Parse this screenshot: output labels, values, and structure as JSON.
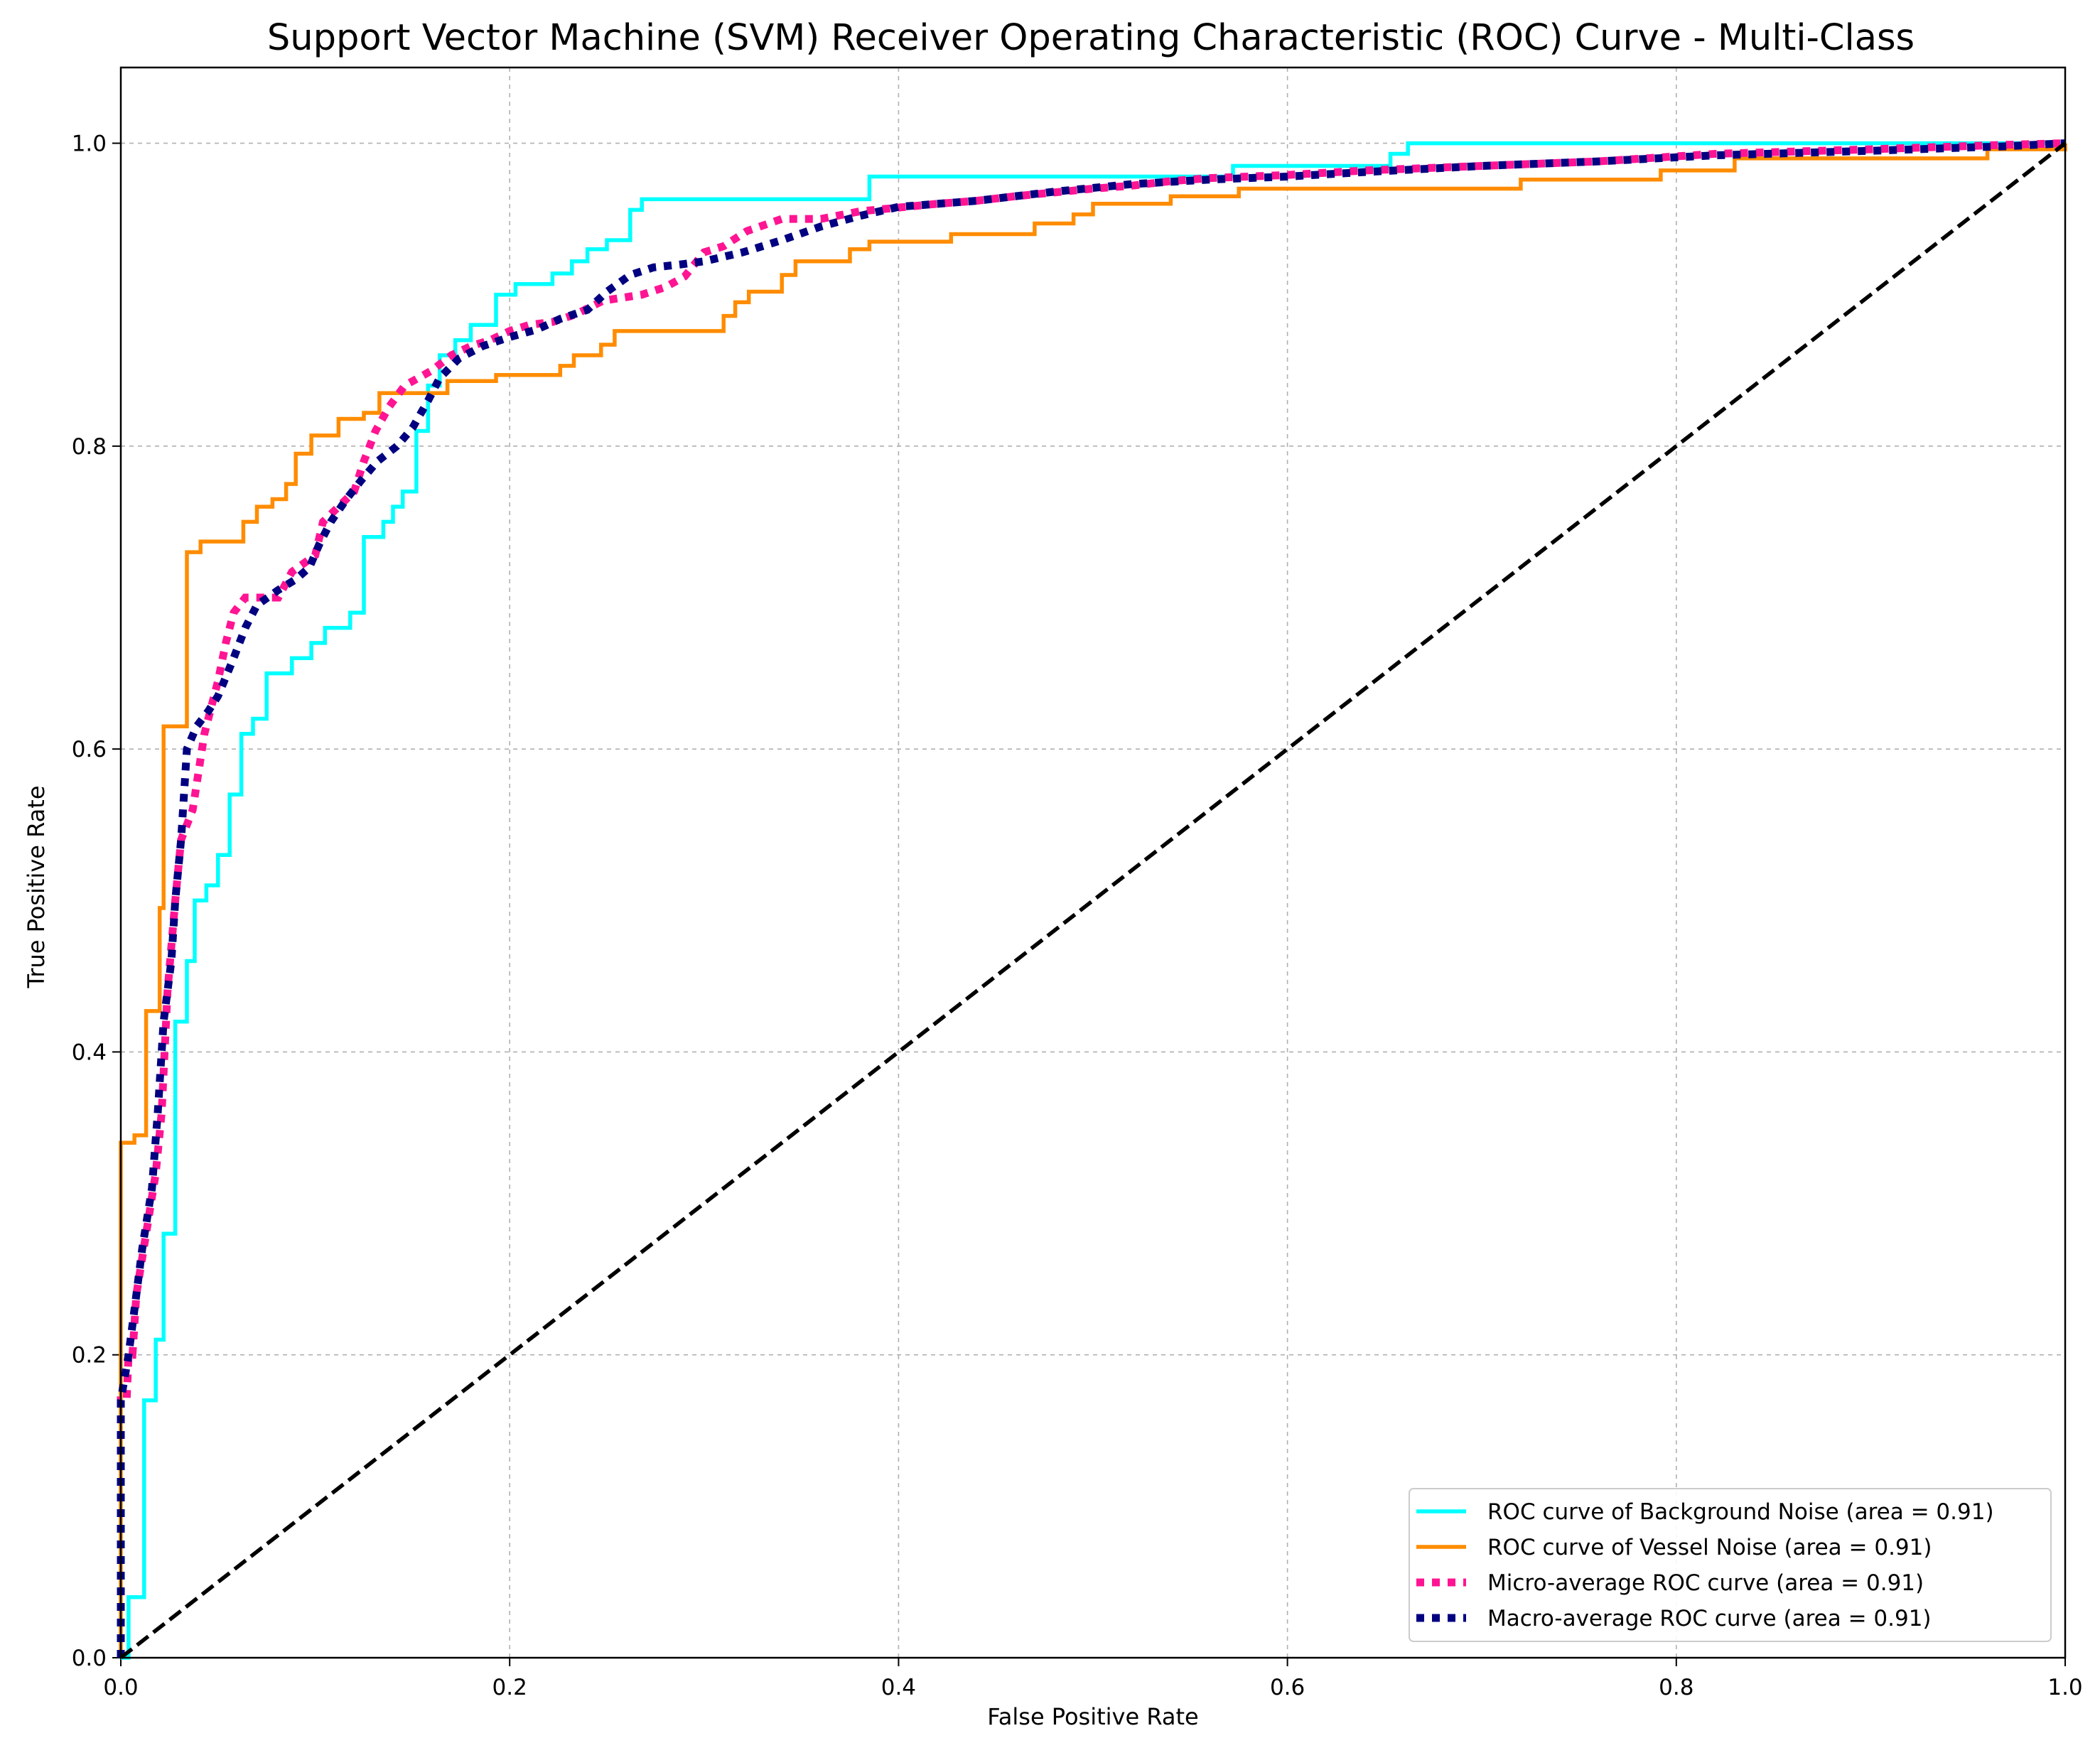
{
  "chart_data": {
    "type": "line",
    "title": "Support Vector Machine (SVM) Receiver Operating Characteristic (ROC) Curve - Multi-Class",
    "xlabel": "False Positive Rate",
    "ylabel": "True Positive Rate",
    "xlim": [
      0.0,
      1.0
    ],
    "ylim": [
      0.0,
      1.05
    ],
    "xticks": [
      0.0,
      0.2,
      0.4,
      0.6,
      0.8,
      1.0
    ],
    "yticks": [
      0.0,
      0.2,
      0.4,
      0.6,
      0.8,
      1.0
    ],
    "xtick_labels": [
      "0.0",
      "0.2",
      "0.4",
      "0.6",
      "0.8",
      "1.0"
    ],
    "ytick_labels": [
      "0.0",
      "0.2",
      "0.4",
      "0.6",
      "0.8",
      "1.0"
    ],
    "grid": true,
    "legend_position": "lower-right",
    "series": [
      {
        "name": "ROC curve of Background Noise (area = 0.91)",
        "color": "#00ffff",
        "style": "solid",
        "points": [
          [
            0.0,
            0.0
          ],
          [
            0.004,
            0.0
          ],
          [
            0.004,
            0.04
          ],
          [
            0.012,
            0.04
          ],
          [
            0.012,
            0.17
          ],
          [
            0.018,
            0.17
          ],
          [
            0.018,
            0.21
          ],
          [
            0.022,
            0.21
          ],
          [
            0.022,
            0.28
          ],
          [
            0.028,
            0.28
          ],
          [
            0.028,
            0.42
          ],
          [
            0.034,
            0.42
          ],
          [
            0.034,
            0.46
          ],
          [
            0.038,
            0.46
          ],
          [
            0.038,
            0.5
          ],
          [
            0.044,
            0.5
          ],
          [
            0.044,
            0.51
          ],
          [
            0.05,
            0.51
          ],
          [
            0.05,
            0.53
          ],
          [
            0.056,
            0.53
          ],
          [
            0.056,
            0.57
          ],
          [
            0.062,
            0.57
          ],
          [
            0.062,
            0.61
          ],
          [
            0.068,
            0.61
          ],
          [
            0.068,
            0.62
          ],
          [
            0.075,
            0.62
          ],
          [
            0.075,
            0.65
          ],
          [
            0.088,
            0.65
          ],
          [
            0.088,
            0.66
          ],
          [
            0.098,
            0.66
          ],
          [
            0.098,
            0.67
          ],
          [
            0.105,
            0.67
          ],
          [
            0.105,
            0.68
          ],
          [
            0.118,
            0.68
          ],
          [
            0.118,
            0.69
          ],
          [
            0.125,
            0.69
          ],
          [
            0.125,
            0.74
          ],
          [
            0.135,
            0.74
          ],
          [
            0.135,
            0.75
          ],
          [
            0.14,
            0.75
          ],
          [
            0.14,
            0.76
          ],
          [
            0.145,
            0.76
          ],
          [
            0.145,
            0.77
          ],
          [
            0.152,
            0.77
          ],
          [
            0.152,
            0.81
          ],
          [
            0.158,
            0.81
          ],
          [
            0.158,
            0.84
          ],
          [
            0.164,
            0.84
          ],
          [
            0.164,
            0.86
          ],
          [
            0.172,
            0.86
          ],
          [
            0.172,
            0.87
          ],
          [
            0.18,
            0.87
          ],
          [
            0.18,
            0.88
          ],
          [
            0.193,
            0.88
          ],
          [
            0.193,
            0.9
          ],
          [
            0.203,
            0.9
          ],
          [
            0.203,
            0.907
          ],
          [
            0.222,
            0.907
          ],
          [
            0.222,
            0.914
          ],
          [
            0.232,
            0.914
          ],
          [
            0.232,
            0.922
          ],
          [
            0.24,
            0.922
          ],
          [
            0.24,
            0.93
          ],
          [
            0.25,
            0.93
          ],
          [
            0.25,
            0.936
          ],
          [
            0.262,
            0.936
          ],
          [
            0.262,
            0.956
          ],
          [
            0.268,
            0.956
          ],
          [
            0.268,
            0.963
          ],
          [
            0.385,
            0.963
          ],
          [
            0.385,
            0.978
          ],
          [
            0.572,
            0.978
          ],
          [
            0.572,
            0.985
          ],
          [
            0.653,
            0.985
          ],
          [
            0.653,
            0.993
          ],
          [
            0.662,
            0.993
          ],
          [
            0.662,
            1.0
          ],
          [
            1.0,
            1.0
          ]
        ]
      },
      {
        "name": "ROC curve of Vessel Noise (area = 0.91)",
        "color": "#ff8c00",
        "style": "solid",
        "points": [
          [
            0.0,
            0.0
          ],
          [
            0.0,
            0.34
          ],
          [
            0.007,
            0.34
          ],
          [
            0.007,
            0.345
          ],
          [
            0.013,
            0.345
          ],
          [
            0.013,
            0.427
          ],
          [
            0.02,
            0.427
          ],
          [
            0.02,
            0.495
          ],
          [
            0.022,
            0.495
          ],
          [
            0.022,
            0.615
          ],
          [
            0.034,
            0.615
          ],
          [
            0.034,
            0.73
          ],
          [
            0.041,
            0.73
          ],
          [
            0.041,
            0.737
          ],
          [
            0.063,
            0.737
          ],
          [
            0.063,
            0.75
          ],
          [
            0.07,
            0.75
          ],
          [
            0.07,
            0.76
          ],
          [
            0.078,
            0.76
          ],
          [
            0.078,
            0.765
          ],
          [
            0.085,
            0.765
          ],
          [
            0.085,
            0.775
          ],
          [
            0.09,
            0.775
          ],
          [
            0.09,
            0.795
          ],
          [
            0.098,
            0.795
          ],
          [
            0.098,
            0.807
          ],
          [
            0.112,
            0.807
          ],
          [
            0.112,
            0.818
          ],
          [
            0.125,
            0.818
          ],
          [
            0.125,
            0.822
          ],
          [
            0.133,
            0.822
          ],
          [
            0.133,
            0.835
          ],
          [
            0.168,
            0.835
          ],
          [
            0.168,
            0.843
          ],
          [
            0.193,
            0.843
          ],
          [
            0.193,
            0.847
          ],
          [
            0.226,
            0.847
          ],
          [
            0.226,
            0.853
          ],
          [
            0.233,
            0.853
          ],
          [
            0.233,
            0.86
          ],
          [
            0.247,
            0.86
          ],
          [
            0.247,
            0.867
          ],
          [
            0.254,
            0.867
          ],
          [
            0.254,
            0.876
          ],
          [
            0.31,
            0.876
          ],
          [
            0.31,
            0.886
          ],
          [
            0.316,
            0.886
          ],
          [
            0.316,
            0.895
          ],
          [
            0.323,
            0.895
          ],
          [
            0.323,
            0.902
          ],
          [
            0.34,
            0.902
          ],
          [
            0.34,
            0.913
          ],
          [
            0.347,
            0.913
          ],
          [
            0.347,
            0.922
          ],
          [
            0.375,
            0.922
          ],
          [
            0.375,
            0.93
          ],
          [
            0.385,
            0.93
          ],
          [
            0.385,
            0.935
          ],
          [
            0.427,
            0.935
          ],
          [
            0.427,
            0.94
          ],
          [
            0.47,
            0.94
          ],
          [
            0.47,
            0.947
          ],
          [
            0.49,
            0.947
          ],
          [
            0.49,
            0.953
          ],
          [
            0.5,
            0.953
          ],
          [
            0.5,
            0.96
          ],
          [
            0.54,
            0.96
          ],
          [
            0.54,
            0.965
          ],
          [
            0.575,
            0.965
          ],
          [
            0.575,
            0.97
          ],
          [
            0.72,
            0.97
          ],
          [
            0.72,
            0.976
          ],
          [
            0.792,
            0.976
          ],
          [
            0.792,
            0.982
          ],
          [
            0.83,
            0.982
          ],
          [
            0.83,
            0.99
          ],
          [
            0.96,
            0.99
          ],
          [
            0.96,
            0.996
          ],
          [
            1.0,
            0.996
          ],
          [
            1.0,
            1.0
          ]
        ]
      },
      {
        "name": "Micro-average ROC curve (area = 0.91)",
        "color": "#ff1493",
        "style": "dotted",
        "points": [
          [
            0.0,
            0.0
          ],
          [
            0.0,
            0.17
          ],
          [
            0.003,
            0.17
          ],
          [
            0.004,
            0.2
          ],
          [
            0.006,
            0.2
          ],
          [
            0.008,
            0.24
          ],
          [
            0.013,
            0.28
          ],
          [
            0.018,
            0.32
          ],
          [
            0.021,
            0.36
          ],
          [
            0.024,
            0.44
          ],
          [
            0.028,
            0.5
          ],
          [
            0.031,
            0.54
          ],
          [
            0.037,
            0.56
          ],
          [
            0.043,
            0.61
          ],
          [
            0.05,
            0.645
          ],
          [
            0.054,
            0.67
          ],
          [
            0.058,
            0.69
          ],
          [
            0.064,
            0.7
          ],
          [
            0.081,
            0.7
          ],
          [
            0.088,
            0.717
          ],
          [
            0.1,
            0.728
          ],
          [
            0.104,
            0.75
          ],
          [
            0.112,
            0.76
          ],
          [
            0.12,
            0.77
          ],
          [
            0.125,
            0.79
          ],
          [
            0.131,
            0.81
          ],
          [
            0.138,
            0.826
          ],
          [
            0.146,
            0.84
          ],
          [
            0.16,
            0.85
          ],
          [
            0.17,
            0.86
          ],
          [
            0.18,
            0.866
          ],
          [
            0.19,
            0.87
          ],
          [
            0.2,
            0.876
          ],
          [
            0.21,
            0.88
          ],
          [
            0.222,
            0.882
          ],
          [
            0.234,
            0.887
          ],
          [
            0.248,
            0.896
          ],
          [
            0.268,
            0.9
          ],
          [
            0.28,
            0.905
          ],
          [
            0.29,
            0.912
          ],
          [
            0.3,
            0.928
          ],
          [
            0.31,
            0.932
          ],
          [
            0.322,
            0.942
          ],
          [
            0.34,
            0.95
          ],
          [
            0.36,
            0.95
          ],
          [
            0.38,
            0.955
          ],
          [
            0.42,
            0.96
          ],
          [
            0.44,
            0.962
          ],
          [
            0.46,
            0.965
          ],
          [
            0.5,
            0.97
          ],
          [
            0.52,
            0.972
          ],
          [
            0.54,
            0.975
          ],
          [
            0.56,
            0.977
          ],
          [
            0.6,
            0.979
          ],
          [
            0.64,
            0.982
          ],
          [
            0.7,
            0.985
          ],
          [
            0.76,
            0.988
          ],
          [
            0.82,
            0.993
          ],
          [
            0.9,
            0.996
          ],
          [
            0.97,
            0.999
          ],
          [
            1.0,
            1.0
          ]
        ]
      },
      {
        "name": "Macro-average ROC curve (area = 0.91)",
        "color": "#000080",
        "style": "dotted",
        "points": [
          [
            0.0,
            0.0
          ],
          [
            0.0,
            0.17
          ],
          [
            0.004,
            0.2
          ],
          [
            0.007,
            0.23
          ],
          [
            0.011,
            0.27
          ],
          [
            0.016,
            0.31
          ],
          [
            0.019,
            0.36
          ],
          [
            0.022,
            0.42
          ],
          [
            0.026,
            0.46
          ],
          [
            0.028,
            0.5
          ],
          [
            0.031,
            0.54
          ],
          [
            0.034,
            0.6
          ],
          [
            0.039,
            0.615
          ],
          [
            0.045,
            0.625
          ],
          [
            0.05,
            0.635
          ],
          [
            0.058,
            0.66
          ],
          [
            0.064,
            0.68
          ],
          [
            0.07,
            0.695
          ],
          [
            0.081,
            0.705
          ],
          [
            0.09,
            0.712
          ],
          [
            0.097,
            0.72
          ],
          [
            0.102,
            0.735
          ],
          [
            0.108,
            0.75
          ],
          [
            0.116,
            0.765
          ],
          [
            0.124,
            0.778
          ],
          [
            0.132,
            0.79
          ],
          [
            0.142,
            0.8
          ],
          [
            0.15,
            0.812
          ],
          [
            0.158,
            0.83
          ],
          [
            0.164,
            0.845
          ],
          [
            0.174,
            0.858
          ],
          [
            0.186,
            0.866
          ],
          [
            0.2,
            0.872
          ],
          [
            0.214,
            0.877
          ],
          [
            0.226,
            0.884
          ],
          [
            0.24,
            0.89
          ],
          [
            0.25,
            0.902
          ],
          [
            0.262,
            0.913
          ],
          [
            0.274,
            0.918
          ],
          [
            0.288,
            0.92
          ],
          [
            0.3,
            0.922
          ],
          [
            0.32,
            0.928
          ],
          [
            0.34,
            0.936
          ],
          [
            0.36,
            0.945
          ],
          [
            0.38,
            0.952
          ],
          [
            0.4,
            0.958
          ],
          [
            0.44,
            0.962
          ],
          [
            0.48,
            0.968
          ],
          [
            0.52,
            0.973
          ],
          [
            0.56,
            0.976
          ],
          [
            0.6,
            0.978
          ],
          [
            0.64,
            0.981
          ],
          [
            0.7,
            0.985
          ],
          [
            0.76,
            0.988
          ],
          [
            0.82,
            0.992
          ],
          [
            0.9,
            0.995
          ],
          [
            0.97,
            0.998
          ],
          [
            1.0,
            1.0
          ]
        ]
      }
    ],
    "reference_line": {
      "color": "#000000",
      "style": "dashed",
      "points": [
        [
          0.0,
          0.0
        ],
        [
          1.0,
          1.0
        ]
      ]
    }
  }
}
